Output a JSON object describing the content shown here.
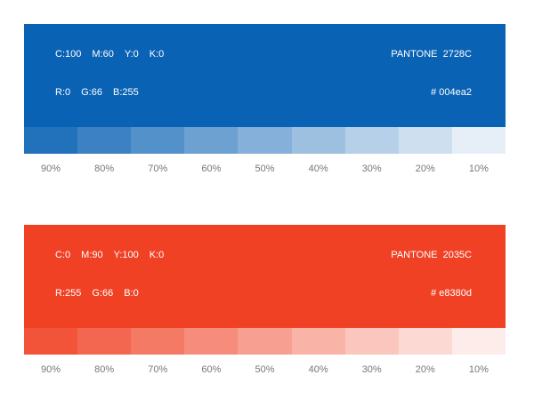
{
  "palettes": [
    {
      "color": "#0a62b4",
      "cmyk": [
        "C:100",
        "M:60",
        "Y:0",
        "K:0"
      ],
      "pantone": "PANTONE  2728C",
      "rgb": [
        "R:0",
        "G:66",
        "B:255"
      ],
      "hex": "# 004ea2",
      "tints": [
        "90%",
        "80%",
        "70%",
        "60%",
        "50%",
        "40%",
        "30%",
        "20%",
        "10%"
      ]
    },
    {
      "color": "#f04124",
      "cmyk": [
        "C:0",
        "M:90",
        "Y:100",
        "K:0"
      ],
      "pantone": "PANTONE  2035C",
      "rgb": [
        "R:255",
        "G:66",
        "B:0"
      ],
      "hex": "# e8380d",
      "tints": [
        "90%",
        "80%",
        "70%",
        "60%",
        "50%",
        "40%",
        "30%",
        "20%",
        "10%"
      ]
    }
  ]
}
